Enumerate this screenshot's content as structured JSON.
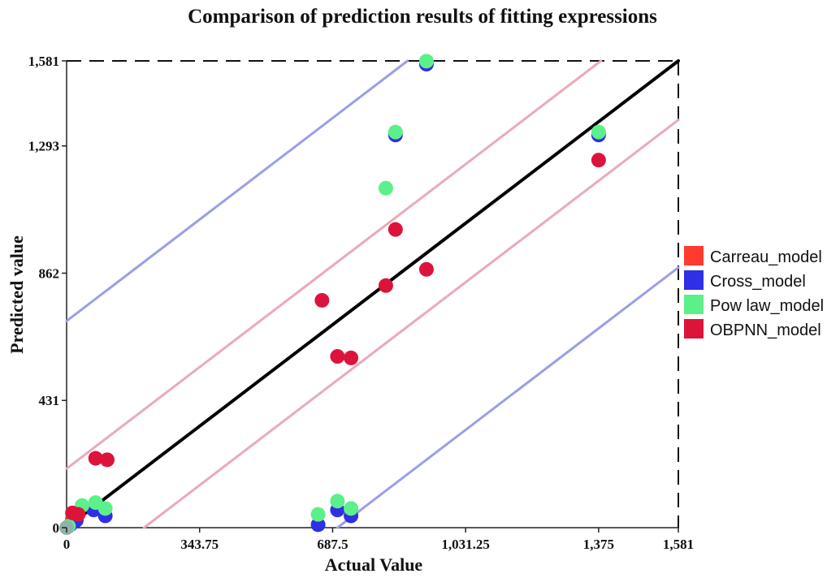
{
  "chart_data": {
    "type": "scatter",
    "title": "Comparison of prediction results of fitting expressions",
    "xlabel": "Actual Value",
    "ylabel": "Predicted value",
    "xlim": [
      0,
      1581
    ],
    "ylim": [
      0,
      1581
    ],
    "x_ticks": [
      {
        "value": 0,
        "label": "0"
      },
      {
        "value": 343.75,
        "label": "343.75"
      },
      {
        "value": 687.5,
        "label": "687.5"
      },
      {
        "value": 1031.25,
        "label": "1,031.25"
      },
      {
        "value": 1375,
        "label": "1,375"
      },
      {
        "value": 1581,
        "label": "1,581"
      }
    ],
    "y_ticks": [
      {
        "value": 0,
        "label": "0"
      },
      {
        "value": 431,
        "label": "431"
      },
      {
        "value": 862,
        "label": "862"
      },
      {
        "value": 1293,
        "label": "1,293"
      },
      {
        "value": 1581,
        "label": "1,581"
      }
    ],
    "reference_lines": [
      {
        "name": "y = x",
        "offset": 0,
        "color": "#000000"
      },
      {
        "name": "+20% band",
        "offset": 200,
        "color": "#e9aab8"
      },
      {
        "name": "-20% band",
        "offset": -200,
        "color": "#e9aab8"
      },
      {
        "name": "+50% band",
        "offset": 700,
        "color": "#9b9fe6"
      },
      {
        "name": "-50% band",
        "offset": -700,
        "color": "#9b9fe6"
      }
    ],
    "legend_position": "right",
    "series": [
      {
        "name": "Carreau_model",
        "color": "#ff3b30",
        "points": [
          [
            5,
            5
          ],
          [
            15,
            30
          ],
          [
            25,
            25
          ]
        ]
      },
      {
        "name": "Cross_model",
        "color": "#2f2fe6",
        "points": [
          [
            10,
            10
          ],
          [
            25,
            25
          ],
          [
            70,
            60
          ],
          [
            100,
            40
          ],
          [
            650,
            10
          ],
          [
            700,
            60
          ],
          [
            735,
            40
          ],
          [
            850,
            1330
          ],
          [
            930,
            1570
          ],
          [
            1375,
            1330
          ]
        ]
      },
      {
        "name": "Pow law_model",
        "color": "#5cf08a",
        "points": [
          [
            5,
            5
          ],
          [
            40,
            75
          ],
          [
            75,
            85
          ],
          [
            100,
            65
          ],
          [
            650,
            45
          ],
          [
            700,
            90
          ],
          [
            735,
            65
          ],
          [
            825,
            1150
          ],
          [
            850,
            1340
          ],
          [
            930,
            1580
          ],
          [
            1375,
            1340
          ]
        ]
      },
      {
        "name": "OBPNN_model",
        "color": "#dc143c",
        "points": [
          [
            15,
            50
          ],
          [
            30,
            45
          ],
          [
            75,
            235
          ],
          [
            105,
            230
          ],
          [
            660,
            770
          ],
          [
            700,
            580
          ],
          [
            735,
            575
          ],
          [
            825,
            820
          ],
          [
            850,
            1010
          ],
          [
            930,
            875
          ],
          [
            1375,
            1245
          ]
        ]
      }
    ],
    "origin_marker": {
      "name": "origin",
      "color": "#8fb3a8",
      "point": [
        0,
        0
      ]
    }
  }
}
